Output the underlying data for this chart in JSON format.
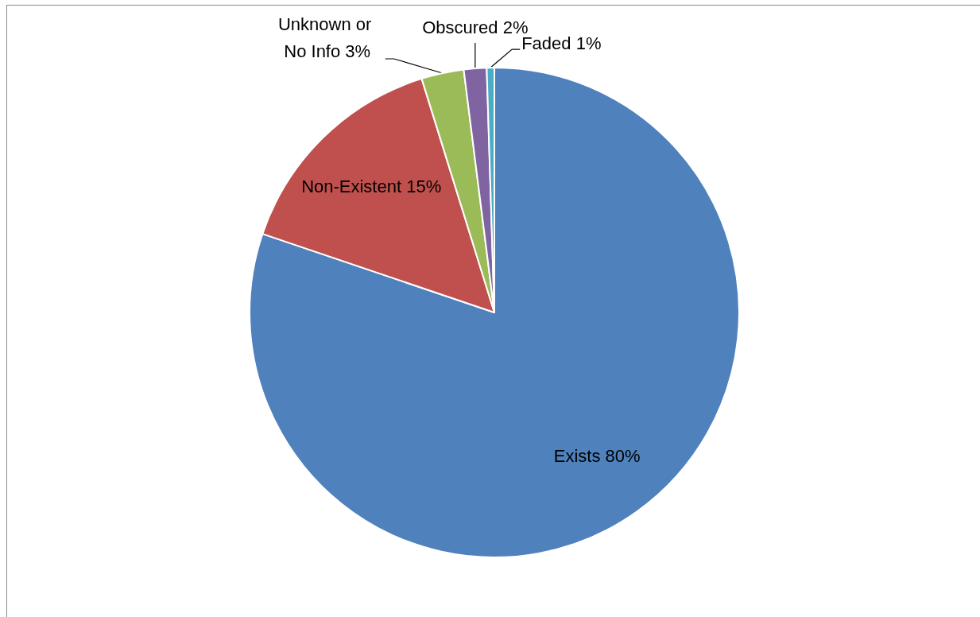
{
  "chart_data": {
    "type": "pie",
    "categories": [
      "Exists",
      "Non-Existent",
      "Unknown or No Info",
      "Obscured",
      "Faded"
    ],
    "values": [
      80.2,
      15.0,
      2.8,
      1.5,
      0.5
    ],
    "colors": [
      "#4f81bd",
      "#c0504d",
      "#9bbb59",
      "#8064a2",
      "#4bacc6"
    ],
    "value_labels": [
      "80%",
      "15%",
      "3%",
      "2%",
      "1%"
    ]
  }
}
